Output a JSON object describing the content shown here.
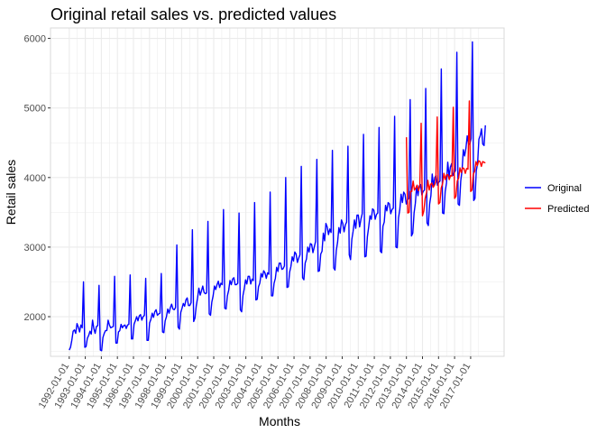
{
  "chart_data": {
    "type": "line",
    "title": "Original retail sales vs. predicted values",
    "xlabel": "Months",
    "ylabel": "Retail sales",
    "x_range": [
      "1992-01-01",
      "2017-12-01"
    ],
    "x_tick_labels": [
      "1992-01-01",
      "1993-01-01",
      "1994-01-01",
      "1995-01-01",
      "1996-01-01",
      "1997-01-01",
      "1998-01-01",
      "1999-01-01",
      "2000-01-01",
      "2001-01-01",
      "2002-01-01",
      "2003-01-01",
      "2004-01-01",
      "2005-01-01",
      "2006-01-01",
      "2007-01-01",
      "2008-01-01",
      "2009-01-01",
      "2010-01-01",
      "2011-01-01",
      "2012-01-01",
      "2013-01-01",
      "2014-01-01",
      "2015-01-01",
      "2016-01-01",
      "2017-01-01"
    ],
    "ylim": [
      1430,
      6150
    ],
    "y_ticks": [
      2000,
      3000,
      4000,
      5000,
      6000
    ],
    "grid": true,
    "legend_position": "right",
    "colors": {
      "original": "#0000ff",
      "predicted": "#ff0000",
      "grid": "#ebebeb",
      "panel_border": "#d9d9d9"
    },
    "series": [
      {
        "name": "Original",
        "frequency": "monthly",
        "start": "1992-01-01",
        "monthly_values_by_year": {
          "1992": [
            1520,
            1560,
            1660,
            1790,
            1810,
            1760,
            1900,
            1850,
            1780,
            1880,
            1840,
            2500
          ],
          "1993": [
            1560,
            1570,
            1690,
            1730,
            1790,
            1750,
            1950,
            1830,
            1760,
            1860,
            1870,
            2450
          ],
          "1994": [
            1520,
            1510,
            1700,
            1760,
            1800,
            1800,
            1950,
            1880,
            1840,
            1850,
            1860,
            2580
          ],
          "1995": [
            1620,
            1620,
            1780,
            1800,
            1890,
            1840,
            1870,
            1880,
            1830,
            1880,
            1890,
            2600
          ],
          "1996": [
            1680,
            1680,
            1890,
            1940,
            2000,
            1940,
            2010,
            2030,
            1950,
            2000,
            2020,
            2550
          ],
          "1997": [
            1660,
            1660,
            1910,
            1960,
            2050,
            1990,
            2070,
            2100,
            2020,
            2040,
            2050,
            2620
          ],
          "1998": [
            1780,
            1770,
            1940,
            2000,
            2110,
            2050,
            2130,
            2180,
            2110,
            2100,
            2130,
            3030
          ],
          "1999": [
            1850,
            1820,
            2060,
            2120,
            2190,
            2150,
            2240,
            2270,
            2160,
            2160,
            2200,
            3250
          ],
          "2000": [
            1930,
            1980,
            2160,
            2270,
            2410,
            2310,
            2370,
            2440,
            2350,
            2330,
            2340,
            3370
          ],
          "2001": [
            2040,
            2020,
            2210,
            2300,
            2440,
            2390,
            2460,
            2510,
            2420,
            2480,
            2460,
            3540
          ],
          "2002": [
            2120,
            2110,
            2300,
            2380,
            2520,
            2460,
            2540,
            2560,
            2460,
            2460,
            2480,
            3490
          ],
          "2003": [
            2100,
            2070,
            2300,
            2400,
            2530,
            2470,
            2580,
            2580,
            2470,
            2540,
            2520,
            3640
          ],
          "2004": [
            2240,
            2250,
            2430,
            2480,
            2620,
            2570,
            2660,
            2630,
            2550,
            2630,
            2610,
            3790
          ],
          "2005": [
            2300,
            2300,
            2480,
            2550,
            2710,
            2650,
            2770,
            2770,
            2680,
            2690,
            2730,
            4000
          ],
          "2006": [
            2420,
            2430,
            2640,
            2720,
            2860,
            2800,
            2930,
            2900,
            2780,
            2840,
            2890,
            4160
          ],
          "2007": [
            2560,
            2530,
            2770,
            2830,
            3000,
            2930,
            3050,
            3040,
            2920,
            3000,
            3080,
            4260
          ],
          "2008": [
            2650,
            2660,
            2900,
            2940,
            3200,
            3090,
            3340,
            3290,
            3180,
            3260,
            3210,
            4390
          ],
          "2009": [
            2700,
            2670,
            2950,
            3070,
            3280,
            3200,
            3390,
            3340,
            3220,
            3320,
            3360,
            4450
          ],
          "2010": [
            2890,
            2820,
            3110,
            3230,
            3390,
            3270,
            3460,
            3460,
            3290,
            3400,
            3480,
            4620
          ],
          "2011": [
            2860,
            2870,
            3150,
            3290,
            3450,
            3400,
            3550,
            3530,
            3400,
            3470,
            3490,
            4720
          ],
          "2012": [
            2940,
            2920,
            3300,
            3360,
            3600,
            3520,
            3640,
            3620,
            3480,
            3540,
            3560,
            4880
          ],
          "2013": [
            3000,
            2990,
            3420,
            3540,
            3760,
            3640,
            3790,
            3760,
            3620,
            3680,
            3700,
            5120
          ],
          "2014": [
            3160,
            3200,
            3490,
            3630,
            3880,
            3740,
            3880,
            3900,
            3750,
            3800,
            3820,
            5280
          ],
          "2015": [
            3350,
            3310,
            3620,
            3740,
            4050,
            3880,
            4000,
            4030,
            3890,
            3930,
            3950,
            5560
          ],
          "2016": [
            3490,
            3480,
            3800,
            3920,
            4220,
            4010,
            4150,
            4200,
            4030,
            4070,
            4100,
            5800
          ],
          "2017": [
            3620,
            3600,
            3950,
            4100,
            4400,
            4310,
            4420,
            4600,
            4480,
            4480,
            4560,
            5950
          ]
        },
        "tail_after_2017": [
          3670,
          3700,
          4100,
          4200,
          4550,
          4600,
          4700,
          4480,
          4460,
          4750
        ]
      },
      {
        "name": "Predicted",
        "frequency": "monthly",
        "start": "2013-01-01",
        "values": [
          4580,
          3490,
          3500,
          3800,
          3800,
          3950,
          3820,
          3850,
          3890,
          3810,
          3870,
          4780,
          3450,
          3520,
          3700,
          3780,
          3960,
          3820,
          3900,
          3920,
          3860,
          3890,
          3940,
          4870,
          3620,
          3640,
          3850,
          3910,
          4060,
          3970,
          4040,
          4040,
          3970,
          4030,
          4020,
          5010,
          3700,
          3730,
          3950,
          3990,
          4140,
          4070,
          4140,
          4130,
          4060,
          4130,
          4120,
          5100,
          3800,
          3820,
          4050,
          4090,
          4230,
          4170,
          4240,
          4230,
          4160,
          4230,
          4220,
          4210
        ]
      }
    ]
  }
}
